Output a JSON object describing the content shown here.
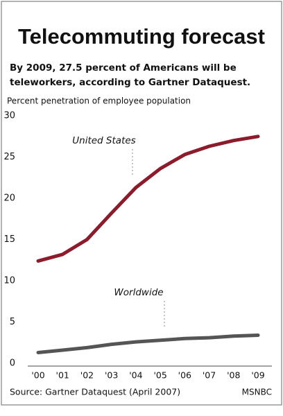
{
  "chart_data": {
    "type": "line",
    "title": "Telecommuting forecast",
    "subtitle": [
      "By 2009, 27.5 percent of Americans will be",
      "teleworkers, according to Gartner Dataquest."
    ],
    "y_label": "Percent penetration of employee population",
    "categories": [
      "'00",
      "'01",
      "'02",
      "'03",
      "'04",
      "'05",
      "'06",
      "'07",
      "'08",
      "'09"
    ],
    "series": [
      {
        "name": "United States",
        "color": "#8c1c2c",
        "values": [
          12.4,
          13.2,
          15.0,
          18.2,
          21.3,
          23.6,
          25.3,
          26.3,
          27.0,
          27.5
        ]
      },
      {
        "name": "Worldwide",
        "color": "#555555",
        "values": [
          1.3,
          1.6,
          1.9,
          2.3,
          2.6,
          2.8,
          3.0,
          3.1,
          3.3,
          3.4
        ]
      }
    ],
    "ylim": [
      0,
      30
    ],
    "yticks": [
      0,
      5,
      10,
      15,
      20,
      25,
      30
    ],
    "grid": false,
    "source": "Source: Gartner Dataquest (April 2007)",
    "credit": "MSNBC"
  }
}
